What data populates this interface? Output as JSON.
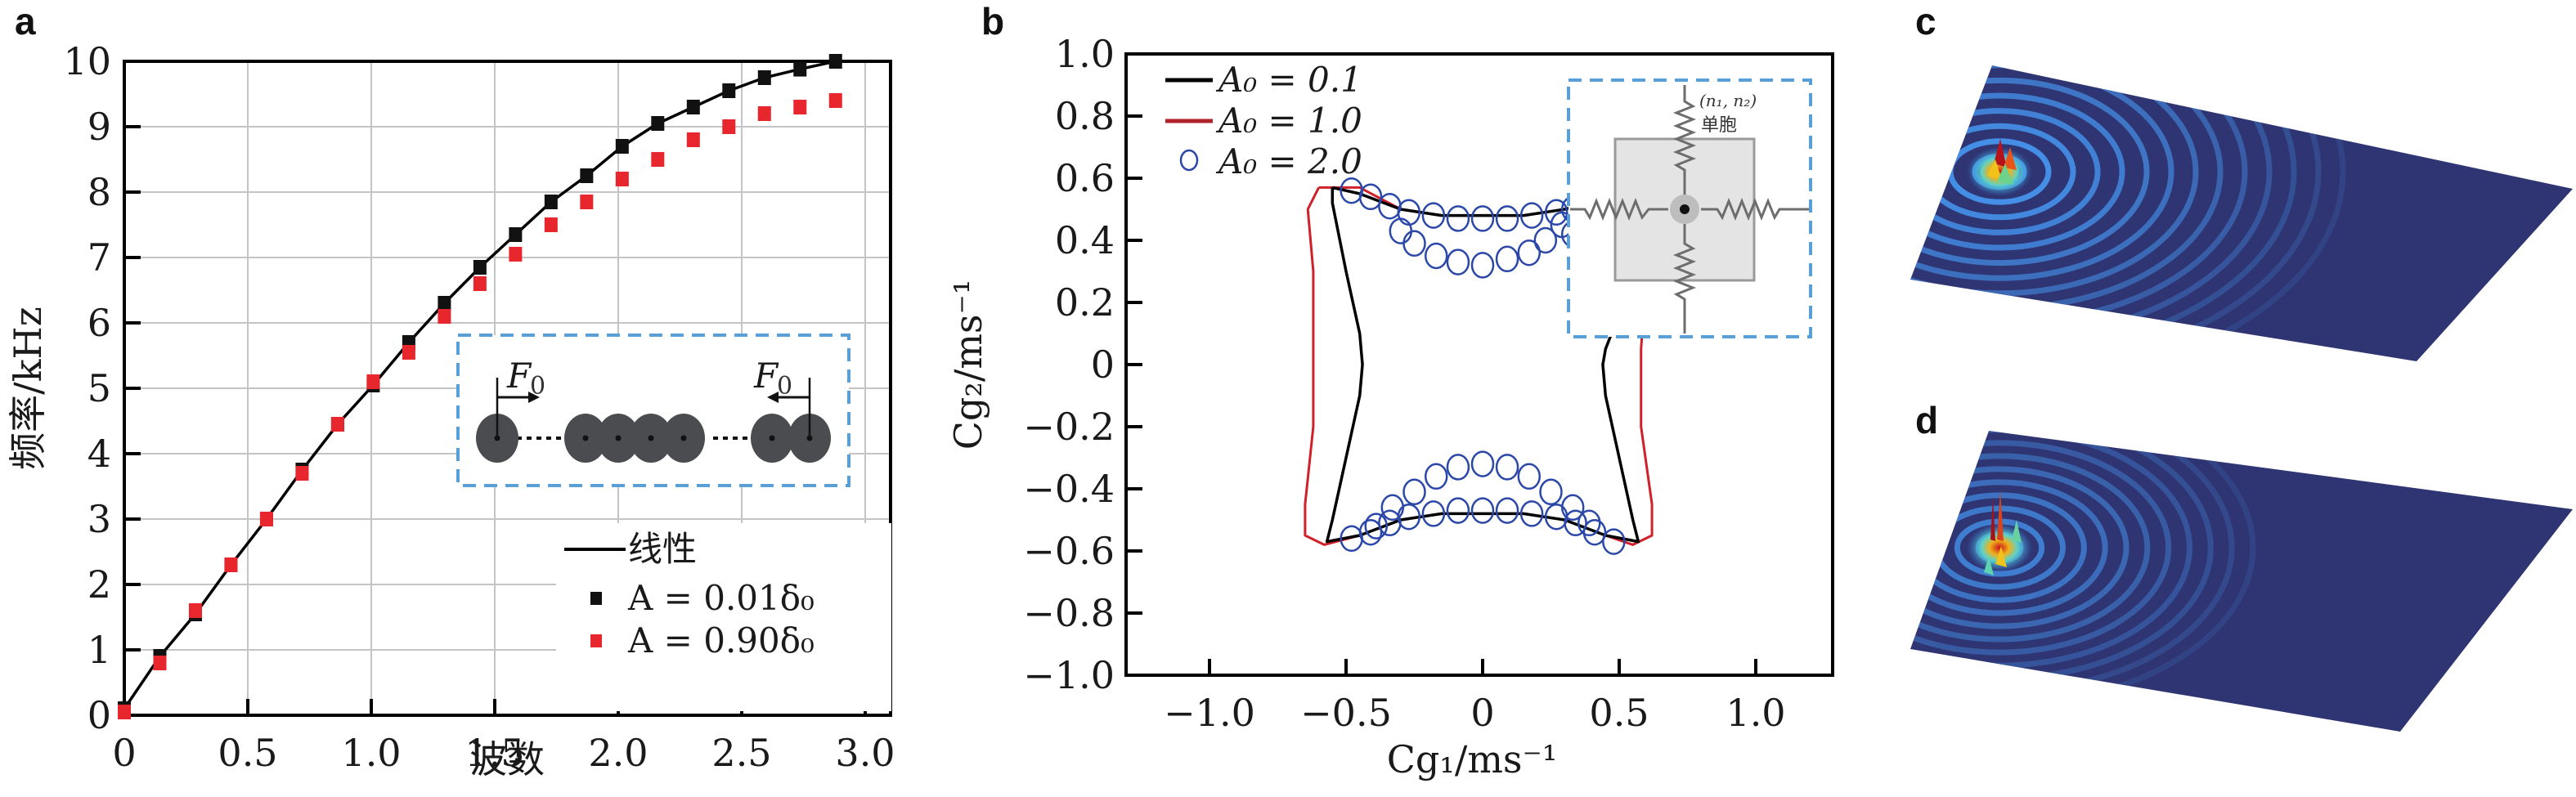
{
  "panels": {
    "a": "a",
    "b": "b",
    "c": "c",
    "d": "d"
  },
  "chart_data": [
    {
      "id": "a",
      "type": "line",
      "xlabel": "波数",
      "ylabel": "频率/kHz",
      "xlim": [
        0,
        3.1
      ],
      "ylim": [
        0,
        10
      ],
      "xticks": [
        "0",
        "0.5",
        "1.0",
        "1.5",
        "2.0",
        "2.5",
        "3.0"
      ],
      "xtick_values": [
        0,
        0.5,
        1.0,
        1.5,
        2.0,
        2.5,
        3.0
      ],
      "yticks": [
        "0",
        "1",
        "2",
        "3",
        "4",
        "5",
        "6",
        "7",
        "8",
        "9",
        "10"
      ],
      "ytick_values": [
        0,
        1,
        2,
        3,
        4,
        5,
        6,
        7,
        8,
        9,
        10
      ],
      "grid": true,
      "legend_position": "bottom-right",
      "x": [
        0,
        0.144,
        0.288,
        0.432,
        0.576,
        0.72,
        0.864,
        1.008,
        1.152,
        1.296,
        1.44,
        1.584,
        1.728,
        1.872,
        2.016,
        2.16,
        2.304,
        2.448,
        2.592,
        2.736,
        2.88
      ],
      "series": [
        {
          "name": "线性",
          "kind": "line",
          "color": "#000000",
          "values": [
            0.1,
            0.9,
            1.55,
            2.3,
            3.0,
            3.75,
            4.45,
            5.05,
            5.7,
            6.3,
            6.85,
            7.35,
            7.85,
            8.25,
            8.7,
            9.05,
            9.3,
            9.55,
            9.75,
            9.88,
            10.0
          ]
        },
        {
          "name": "A = 0.01δ₀",
          "kind": "marker",
          "color": "#111111",
          "values": [
            0.1,
            0.9,
            1.55,
            2.3,
            3.0,
            3.75,
            4.45,
            5.05,
            5.7,
            6.3,
            6.85,
            7.35,
            7.85,
            8.25,
            8.7,
            9.05,
            9.3,
            9.55,
            9.75,
            9.88,
            10.0
          ]
        },
        {
          "name": "A = 0.90δ₀",
          "kind": "marker",
          "color": "#e8262d",
          "values": [
            0.05,
            0.8,
            1.6,
            2.3,
            3.0,
            3.7,
            4.45,
            5.1,
            5.55,
            6.1,
            6.6,
            7.05,
            7.5,
            7.85,
            8.2,
            8.5,
            8.8,
            9.0,
            9.2,
            9.3,
            9.4
          ]
        }
      ],
      "inset": {
        "force_label_left": "F",
        "force_label_right": "F",
        "subscript": "0",
        "border_color": "#5aa0d6",
        "ball_color": "#4a4c50"
      }
    },
    {
      "id": "b",
      "type": "line",
      "xlabel": "Cg₁/ms⁻¹",
      "ylabel": "Cg₂/ms⁻¹",
      "xlim": [
        -1.3,
        1.3
      ],
      "ylim": [
        -1.0,
        1.0
      ],
      "xticks": [
        "−1.0",
        "−0.5",
        "0",
        "0.5",
        "1.0"
      ],
      "xtick_values": [
        -1.0,
        -0.5,
        0,
        0.5,
        1.0
      ],
      "yticks": [
        "1.0",
        "0.8",
        "0.6",
        "0.4",
        "0.2",
        "0",
        "−0.2",
        "−0.4",
        "−0.6",
        "−0.8",
        "−1.0"
      ],
      "ytick_values": [
        1.0,
        0.8,
        0.6,
        0.4,
        0.2,
        0,
        -0.2,
        -0.4,
        -0.6,
        -0.8,
        -1.0
      ],
      "grid": false,
      "legend_position": "top-left",
      "series": [
        {
          "name": "A₀ = 0.1",
          "kind": "line",
          "color": "#000000",
          "points": [
            [
              -0.55,
              0.57
            ],
            [
              -0.45,
              0.55
            ],
            [
              -0.3,
              0.5
            ],
            [
              -0.15,
              0.48
            ],
            [
              0,
              0.48
            ],
            [
              0.15,
              0.48
            ],
            [
              0.3,
              0.5
            ],
            [
              0.45,
              0.53
            ],
            [
              0.55,
              0.55
            ],
            [
              0.56,
              0.3
            ],
            [
              0.45,
              0.05
            ],
            [
              0.44,
              0
            ],
            [
              0.45,
              -0.1
            ],
            [
              0.5,
              -0.3
            ],
            [
              0.55,
              -0.5
            ],
            [
              0.57,
              -0.57
            ],
            [
              0.45,
              -0.55
            ],
            [
              0.3,
              -0.5
            ],
            [
              0.15,
              -0.48
            ],
            [
              0,
              -0.48
            ],
            [
              -0.15,
              -0.48
            ],
            [
              -0.3,
              -0.5
            ],
            [
              -0.45,
              -0.55
            ],
            [
              -0.57,
              -0.57
            ],
            [
              -0.55,
              -0.5
            ],
            [
              -0.5,
              -0.3
            ],
            [
              -0.45,
              -0.1
            ],
            [
              -0.44,
              0
            ],
            [
              -0.45,
              0.1
            ],
            [
              -0.5,
              0.3
            ],
            [
              -0.55,
              0.52
            ],
            [
              -0.55,
              0.57
            ]
          ]
        },
        {
          "name": "A₀ = 1.0",
          "kind": "line",
          "color": "#d0202a",
          "points": [
            [
              -0.6,
              0.57
            ],
            [
              -0.45,
              0.57
            ],
            [
              -0.3,
              0.5
            ],
            [
              -0.15,
              0.48
            ],
            [
              0,
              0.48
            ],
            [
              0.15,
              0.48
            ],
            [
              0.3,
              0.5
            ],
            [
              0.45,
              0.53
            ],
            [
              0.6,
              0.56
            ],
            [
              0.6,
              0.3
            ],
            [
              0.58,
              0.05
            ],
            [
              0.58,
              -0.2
            ],
            [
              0.62,
              -0.45
            ],
            [
              0.62,
              -0.55
            ],
            [
              0.55,
              -0.58
            ],
            [
              0.45,
              -0.55
            ],
            [
              0.3,
              -0.5
            ],
            [
              0.15,
              -0.48
            ],
            [
              0,
              -0.48
            ],
            [
              -0.15,
              -0.48
            ],
            [
              -0.3,
              -0.5
            ],
            [
              -0.45,
              -0.55
            ],
            [
              -0.58,
              -0.58
            ],
            [
              -0.65,
              -0.55
            ],
            [
              -0.65,
              -0.45
            ],
            [
              -0.62,
              -0.2
            ],
            [
              -0.62,
              0.05
            ],
            [
              -0.62,
              0.3
            ],
            [
              -0.64,
              0.5
            ],
            [
              -0.6,
              0.57
            ]
          ]
        },
        {
          "name": "A₀ = 2.0",
          "kind": "marker",
          "color": "#2b47a8",
          "points": [
            [
              -0.48,
              0.56
            ],
            [
              -0.41,
              0.54
            ],
            [
              -0.34,
              0.51
            ],
            [
              -0.27,
              0.49
            ],
            [
              -0.18,
              0.48
            ],
            [
              -0.09,
              0.47
            ],
            [
              0,
              0.47
            ],
            [
              0.09,
              0.47
            ],
            [
              0.18,
              0.48
            ],
            [
              0.27,
              0.49
            ],
            [
              0.33,
              0.5
            ],
            [
              -0.3,
              0.43
            ],
            [
              -0.25,
              0.39
            ],
            [
              -0.17,
              0.35
            ],
            [
              -0.09,
              0.33
            ],
            [
              0,
              0.32
            ],
            [
              0.09,
              0.34
            ],
            [
              0.17,
              0.36
            ],
            [
              0.23,
              0.4
            ],
            [
              0.29,
              0.45
            ],
            [
              0.33,
              0.42
            ],
            [
              -0.48,
              -0.56
            ],
            [
              -0.41,
              -0.54
            ],
            [
              -0.34,
              -0.51
            ],
            [
              -0.27,
              -0.49
            ],
            [
              -0.18,
              -0.48
            ],
            [
              -0.09,
              -0.47
            ],
            [
              0,
              -0.47
            ],
            [
              0.09,
              -0.47
            ],
            [
              0.18,
              -0.48
            ],
            [
              0.27,
              -0.49
            ],
            [
              0.34,
              -0.51
            ],
            [
              0.41,
              -0.54
            ],
            [
              0.48,
              -0.57
            ],
            [
              -0.39,
              -0.52
            ],
            [
              -0.33,
              -0.46
            ],
            [
              -0.25,
              -0.41
            ],
            [
              -0.17,
              -0.36
            ],
            [
              -0.09,
              -0.33
            ],
            [
              0,
              -0.32
            ],
            [
              0.09,
              -0.33
            ],
            [
              0.17,
              -0.36
            ],
            [
              0.25,
              -0.41
            ],
            [
              0.33,
              -0.46
            ],
            [
              0.39,
              -0.51
            ]
          ]
        }
      ],
      "inset": {
        "cell_label": "(n₁, n₂)",
        "cell_name": "单胞",
        "border_color": "#5aa0d6"
      }
    },
    {
      "id": "c",
      "type": "heatmap",
      "title": "",
      "description": "3D surface of wave field amplitude, circular wavefronts radiating from a source near left corner"
    },
    {
      "id": "d",
      "type": "heatmap",
      "title": "",
      "description": "3D surface of wave field amplitude, localized wavefronts near left corner with sharp peaks"
    }
  ]
}
